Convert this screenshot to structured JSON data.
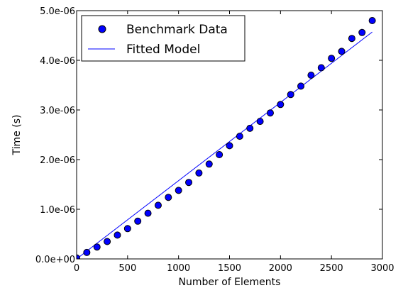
{
  "chart_data": {
    "type": "scatter",
    "xlabel": "Number of Elements",
    "ylabel": "Time (s)",
    "xlim": [
      0,
      3000
    ],
    "ylim": [
      0,
      5e-06
    ],
    "x_ticks": [
      0,
      500,
      1000,
      1500,
      2000,
      2500,
      3000
    ],
    "x_tick_labels": [
      "0",
      "500",
      "1000",
      "1500",
      "2000",
      "2500",
      "3000"
    ],
    "y_ticks": [
      0,
      1e-06,
      2e-06,
      3e-06,
      4e-06,
      5e-06
    ],
    "y_tick_labels": [
      "0.0e+00",
      "1.0e-06",
      "2.0e-06",
      "3.0e-06",
      "4.0e-06",
      "5.0e-06"
    ],
    "grid": false,
    "legend": {
      "placement": "top-left",
      "entries": [
        "Benchmark Data",
        "Fitted Model"
      ]
    },
    "series": [
      {
        "name": "Benchmark Data",
        "kind": "markers",
        "color": "#0000ff",
        "x": [
          0,
          100,
          200,
          300,
          400,
          500,
          600,
          700,
          800,
          900,
          1000,
          1100,
          1200,
          1300,
          1400,
          1500,
          1600,
          1700,
          1800,
          1900,
          2000,
          2100,
          2200,
          2300,
          2400,
          2500,
          2600,
          2700,
          2800,
          2900
        ],
        "y": [
          2e-08,
          1.3e-07,
          2.4e-07,
          3.5e-07,
          4.8e-07,
          6.1e-07,
          7.6e-07,
          9.2e-07,
          1.08e-06,
          1.24e-06,
          1.38e-06,
          1.54e-06,
          1.73e-06,
          1.91e-06,
          2.1e-06,
          2.28e-06,
          2.47e-06,
          2.63e-06,
          2.77e-06,
          2.94e-06,
          3.11e-06,
          3.31e-06,
          3.48e-06,
          3.7e-06,
          3.85e-06,
          4.04e-06,
          4.18e-06,
          4.44e-06,
          4.56e-06,
          4.8e-06
        ]
      },
      {
        "name": "Fitted Model",
        "kind": "line",
        "color": "#0000ff",
        "x": [
          0,
          2900
        ],
        "y": [
          0,
          4.57e-06
        ]
      }
    ]
  }
}
